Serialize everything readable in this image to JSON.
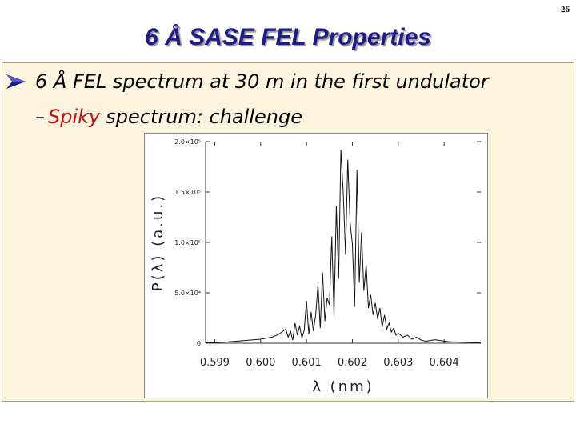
{
  "slide": {
    "number": "26",
    "title": "6 Å SASE FEL Properties",
    "bullet": "6 Å FEL spectrum at 30 m in the first undulator",
    "sub_dash": "–",
    "sub_highlight": "Spiky",
    "sub_rest": "spectrum: challenge"
  },
  "colors": {
    "title": "#1c1c8a",
    "background_box": "#fcf4df",
    "highlight": "#c01010",
    "bullet_arrow": "#1c1c8a"
  },
  "chart_data": {
    "type": "line",
    "xlabel": "λ (nm)",
    "ylabel": "P(λ) (a.u.)",
    "xlim": [
      0.5988,
      0.6048
    ],
    "ylim": [
      0,
      200000
    ],
    "x_ticks": [
      0.599,
      0.6,
      0.601,
      0.602,
      0.603,
      0.604
    ],
    "x_tick_labels": [
      "0.599",
      "0.600",
      "0.601",
      "0.602",
      "0.603",
      "0.604"
    ],
    "y_ticks": [
      0,
      50000,
      100000,
      150000,
      200000
    ],
    "y_tick_labels": [
      "0",
      "5.0×10⁴",
      "1.0×10⁵",
      "1.5×10⁵",
      "2.0×10⁵"
    ],
    "grid": false,
    "series": [
      {
        "x": [
          0.5988,
          0.5992,
          0.5996,
          0.6,
          0.60025,
          0.6004,
          0.60055,
          0.6006,
          0.60065,
          0.6007,
          0.60075,
          0.6008,
          0.60085,
          0.6009,
          0.60095,
          0.601,
          0.60105,
          0.6011,
          0.60115,
          0.6012,
          0.60125,
          0.6013,
          0.60135,
          0.6014,
          0.60145,
          0.6015,
          0.60155,
          0.6016,
          0.60165,
          0.6017,
          0.60175,
          0.6018,
          0.60185,
          0.6019,
          0.60195,
          0.602,
          0.60205,
          0.6021,
          0.60215,
          0.6022,
          0.60225,
          0.6023,
          0.60235,
          0.6024,
          0.60245,
          0.6025,
          0.60255,
          0.6026,
          0.60265,
          0.6027,
          0.60275,
          0.6028,
          0.60285,
          0.6029,
          0.60295,
          0.603,
          0.6031,
          0.6032,
          0.6033,
          0.6034,
          0.6035,
          0.6036,
          0.6038,
          0.6041,
          0.6044,
          0.6046,
          0.6048
        ],
        "y": [
          500,
          1000,
          2500,
          4000,
          6000,
          9000,
          14000,
          6000,
          12000,
          3000,
          20000,
          8000,
          17000,
          5000,
          13000,
          42000,
          9000,
          31000,
          12000,
          28000,
          58000,
          15000,
          70000,
          22000,
          45000,
          38000,
          106000,
          27000,
          136000,
          64000,
          192000,
          150000,
          88000,
          182000,
          120000,
          98000,
          36000,
          172000,
          60000,
          110000,
          52000,
          78000,
          35000,
          48000,
          28000,
          40000,
          24000,
          35000,
          16000,
          28000,
          14000,
          20000,
          11000,
          15000,
          8000,
          10000,
          6000,
          8000,
          4000,
          6000,
          3000,
          2000,
          3500,
          1500,
          1000,
          800,
          400
        ]
      }
    ]
  }
}
